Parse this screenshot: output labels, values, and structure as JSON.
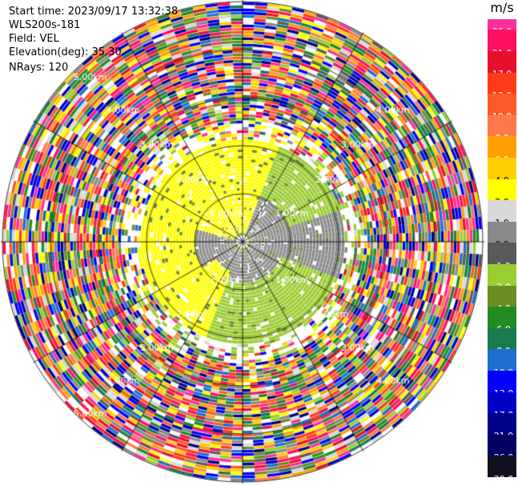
{
  "info": {
    "start_time": "Start time: 2023/09/17 13:32:38",
    "instrument": "WLS200s-181",
    "field": "Field: VEL",
    "elevation": "Elevation(deg): 35.30",
    "nrays": "NRays: 120"
  },
  "colorbar": {
    "unit": "m/s",
    "ticks": [
      "26.0",
      "21.0",
      "17.0",
      "13.0",
      "10.0",
      "8.0",
      "6.0",
      "4.0",
      "2.0",
      "1.0",
      "0.0",
      "-1.0",
      "-2.0",
      "-4.0",
      "-6.0",
      "-8.0",
      "-10.0",
      "-13.0",
      "-17.0",
      "-21.0",
      "-26.0",
      "-30.0"
    ],
    "colors": [
      "#ff2e9a",
      "#ff1060",
      "#e8102a",
      "#ff3b1a",
      "#ff5a28",
      "#ff7a4a",
      "#ffa000",
      "#ffd000",
      "#ffff00",
      "#d8d8d8",
      "#8a8a8a",
      "#5a5a5a",
      "#9acd32",
      "#6b8e23",
      "#228b22",
      "#1a7a50",
      "#1e6fd0",
      "#0000ff",
      "#0000c8",
      "#00008b",
      "#000060",
      "#101020"
    ]
  },
  "chart_data": {
    "type": "heatmap",
    "subtype": "ppi-polar-scan",
    "field": "VEL",
    "units": "m/s",
    "elevation_deg": 35.3,
    "nrays": 120,
    "range_ring_labels": [
      "1.00km",
      "1.00km",
      "1.00km",
      "1.00km",
      "2.00km",
      "2.00km",
      "2.00km",
      "2.00km",
      "3.00km",
      "3.00km",
      "3.00km",
      "3.00km",
      "4.00km",
      "4.00km",
      "4.00km",
      "4.00km",
      "5.00km",
      "5.00km",
      "5.00km"
    ],
    "colorbar_range": [
      -30.0,
      26.0
    ]
  }
}
